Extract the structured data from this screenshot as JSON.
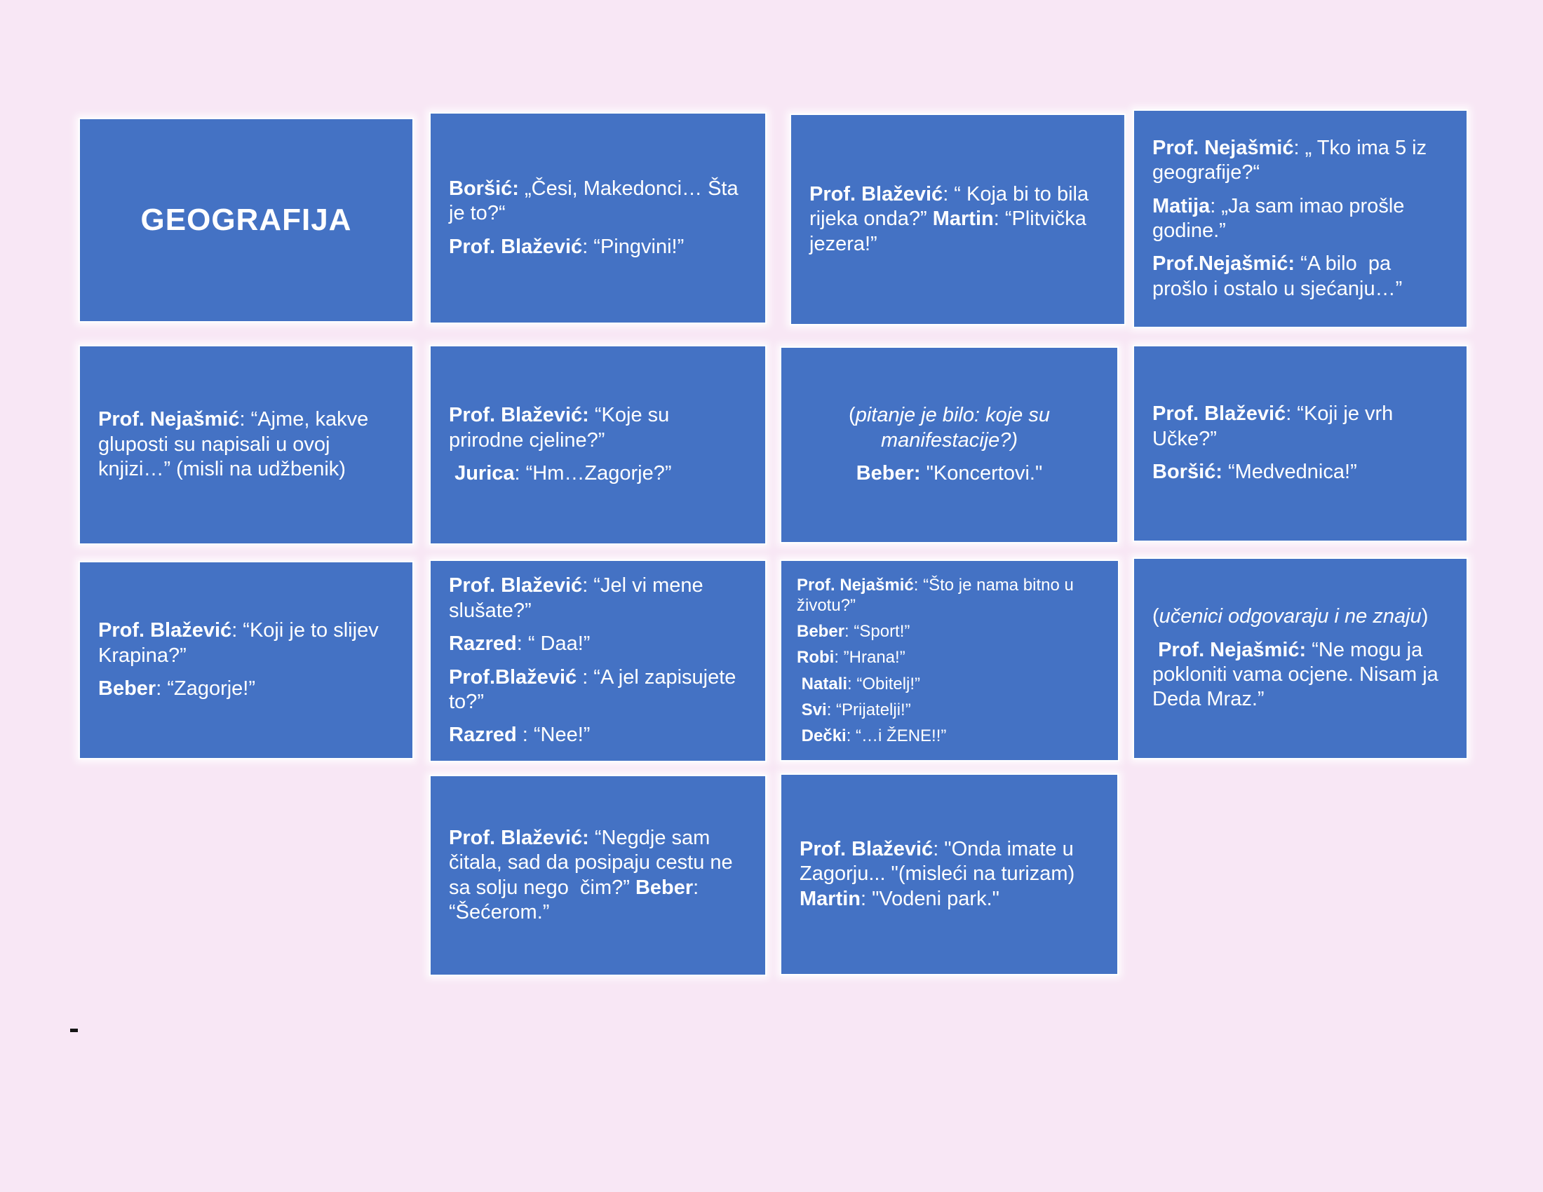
{
  "page": {
    "colors": {
      "background": "#F8E7F5",
      "card_fill": "#4472C4",
      "card_border": "#FFFFFF",
      "card_text": "#FFFFFF",
      "dash_mark": "#151515"
    }
  },
  "title_card": {
    "label": "GEOGRAFIJA"
  },
  "quote_cards": [
    {
      "paragraphs": [
        [
          {
            "t": "Boršić:",
            "b": true
          },
          {
            "t": " „Česi, Makedonci… Šta je to?“"
          }
        ],
        [
          {
            "t": "Prof. Blažević",
            "b": true
          },
          {
            "t": ": “Pingvini!”"
          }
        ]
      ]
    },
    {
      "paragraphs": [
        [
          {
            "t": "Prof. Blažević",
            "b": true
          },
          {
            "t": ": “ Koja bi to bila rijeka onda?” "
          },
          {
            "t": "Martin",
            "b": true
          },
          {
            "t": ": “Plitvička jezera!”"
          }
        ]
      ]
    },
    {
      "paragraphs": [
        [
          {
            "t": "Prof. Nejašmić",
            "b": true
          },
          {
            "t": ": „ Tko ima 5 iz geografije?“"
          }
        ],
        [
          {
            "t": "Matija",
            "b": true
          },
          {
            "t": ": „Ja sam imao prošle godine.”"
          }
        ],
        [
          {
            "t": "Prof.Nejašmić:",
            "b": true
          },
          {
            "t": " “A bilo  pa prošlo i ostalo u sjećanju…”"
          }
        ]
      ]
    },
    {
      "paragraphs": [
        [
          {
            "t": "Prof. Nejašmić",
            "b": true
          },
          {
            "t": ": “Ajme, kakve gluposti su napisali u ovoj knjizi…” (misli na udžbenik)"
          }
        ]
      ]
    },
    {
      "paragraphs": [
        [
          {
            "t": "Prof. Blažević:",
            "b": true
          },
          {
            "t": " “Koje su prirodne cjeline?”"
          }
        ],
        [
          {
            "t": " Jurica",
            "b": true
          },
          {
            "t": ": “Hm…Zagorje?”"
          }
        ]
      ]
    },
    {
      "paragraphs": [
        [
          {
            "t": "("
          },
          {
            "t": "pitanje je bilo: koje su manifestacije?)",
            "i": true
          }
        ],
        [
          {
            "t": "Beber:",
            "b": true
          },
          {
            "t": " \"Koncertovi.\""
          }
        ]
      ]
    },
    {
      "paragraphs": [
        [
          {
            "t": "Prof. Blažević",
            "b": true
          },
          {
            "t": ": “Koji je vrh Učke?”"
          }
        ],
        [
          {
            "t": "Boršić:",
            "b": true
          },
          {
            "t": " “Medvednica!”"
          }
        ]
      ]
    },
    {
      "paragraphs": [
        [
          {
            "t": "Prof. Blažević",
            "b": true
          },
          {
            "t": ": “Koji je to slijev Krapina?”"
          }
        ],
        [
          {
            "t": "Beber",
            "b": true
          },
          {
            "t": ": “Zagorje!”"
          }
        ]
      ]
    },
    {
      "paragraphs": [
        [
          {
            "t": "Prof. Blažević",
            "b": true
          },
          {
            "t": ": “Jel vi mene slušate?”"
          }
        ],
        [
          {
            "t": "Razred",
            "b": true
          },
          {
            "t": ": “ Daa!”"
          }
        ],
        [
          {
            "t": "Prof.Blažević",
            "b": true
          },
          {
            "t": " : “A jel zapisujete to?”"
          }
        ],
        [
          {
            "t": "Razred",
            "b": true
          },
          {
            "t": " : “Nee!”"
          }
        ]
      ]
    },
    {
      "paragraphs": [
        [
          {
            "t": "Prof. Nejašmić",
            "b": true
          },
          {
            "t": ": “Što je nama bitno u životu?”"
          }
        ],
        [
          {
            "t": "Beber",
            "b": true
          },
          {
            "t": ": “Sport!”"
          }
        ],
        [
          {
            "t": "Robi",
            "b": true
          },
          {
            "t": ": ”Hrana!”"
          }
        ],
        [
          {
            "t": " Natali",
            "b": true
          },
          {
            "t": ": “Obitelj!”"
          }
        ],
        [
          {
            "t": " Svi",
            "b": true
          },
          {
            "t": ": “Prijatelji!”"
          }
        ],
        [
          {
            "t": " Dečki",
            "b": true
          },
          {
            "t": ": “…i ŽENE!!”"
          }
        ]
      ]
    },
    {
      "paragraphs": [
        [
          {
            "t": "("
          },
          {
            "t": "učenici odgovaraju i ne znaju",
            "i": true
          },
          {
            "t": ")"
          }
        ],
        [
          {
            "t": " Prof. Nejašmić:",
            "b": true
          },
          {
            "t": " “Ne mogu ja pokloniti vama ocjene. Nisam ja Deda Mraz.”"
          }
        ]
      ]
    },
    {
      "paragraphs": [
        [
          {
            "t": "Prof. Blažević:",
            "b": true
          },
          {
            "t": " “Negdje sam čitala, sad da posipaju cestu ne sa solju nego  čim?” "
          },
          {
            "t": "Beber",
            "b": true
          },
          {
            "t": ": “Šećerom.”"
          }
        ]
      ]
    },
    {
      "paragraphs": [
        [
          {
            "t": "Prof. Blažević",
            "b": true
          },
          {
            "t": ": \"Onda imate u Zagorju... \"(misleći na turizam) "
          },
          {
            "t": "Martin",
            "b": true
          },
          {
            "t": ": \"Vodeni park.\""
          }
        ]
      ]
    }
  ]
}
